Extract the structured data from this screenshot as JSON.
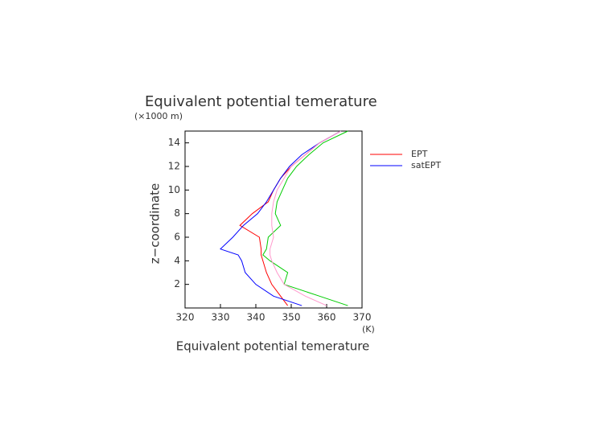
{
  "chart_data": {
    "type": "line",
    "title": "Equivalent potential temerature",
    "y_unit": "(×1000 m)",
    "x_unit": "(K)",
    "xlabel": "Equivalent potential temerature",
    "ylabel": "z−coordinate",
    "y": [
      0.2,
      1,
      2,
      3,
      4,
      4.5,
      5,
      6,
      7,
      8,
      9,
      10,
      11,
      12,
      13,
      14,
      15
    ],
    "series": [
      {
        "name": "EPT",
        "color": "#ff0000",
        "values": [
          349,
          347,
          344.5,
          343,
          342,
          341.5,
          341.5,
          341,
          335.5,
          339,
          343.5,
          345,
          347,
          350,
          354,
          358,
          364
        ]
      },
      {
        "name": "satEPT",
        "color": "#0000ff",
        "values": [
          353,
          345,
          340,
          337,
          336,
          335,
          330,
          333.5,
          336.5,
          340.5,
          343,
          345,
          347,
          349.5,
          353,
          358,
          364
        ]
      },
      {
        "color": "#00cc00",
        "values": [
          366,
          358,
          348,
          349,
          344,
          342,
          343,
          343.5,
          347,
          345.5,
          346,
          347.5,
          349,
          351.5,
          355,
          359,
          366
        ]
      },
      {
        "color": "#ff99cc",
        "values": [
          360,
          354,
          348,
          346,
          344.5,
          344,
          344,
          345,
          344.5,
          344.5,
          345,
          346,
          348,
          350,
          354,
          358,
          364
        ]
      }
    ],
    "xlim": [
      320,
      370
    ],
    "xticks": [
      320,
      330,
      340,
      350,
      360,
      370
    ],
    "ylim": [
      0,
      15
    ],
    "yticks": [
      2,
      4,
      6,
      8,
      10,
      12,
      14
    ]
  }
}
